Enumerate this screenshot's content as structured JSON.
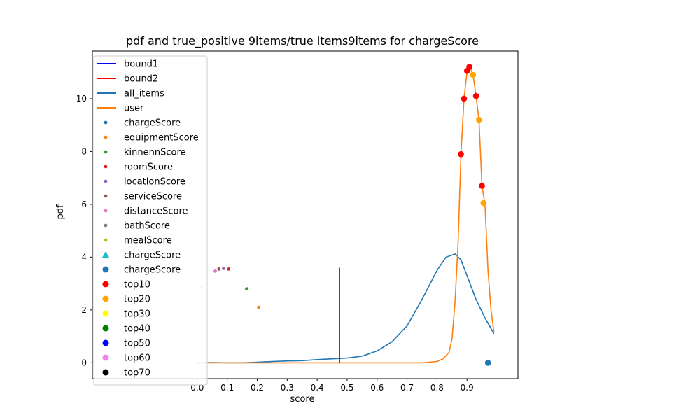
{
  "chart_data": {
    "type": "line",
    "title": "pdf and true_positive 9items/true items9items for chargeScore",
    "xlabel": "score",
    "ylabel": "pdf",
    "xlim": [
      -0.35,
      1.07
    ],
    "ylim": [
      -0.6,
      11.8
    ],
    "xticks": [
      "0.0",
      "0.1",
      "0.2",
      "0.3",
      "0.4",
      "0.5",
      "0.6",
      "0.7",
      "0.8",
      "0.9"
    ],
    "yticks": [
      "0",
      "2",
      "4",
      "6",
      "8",
      "10"
    ],
    "grid": false,
    "legend_position": "upper-left",
    "colors": {
      "bound1": "#0000ff",
      "bound2": "#ff0000",
      "all_items": "#1f77b4",
      "user": "#ff7f0e",
      "top10": "#ff0000",
      "top20": "#ffa500"
    },
    "lines": [
      {
        "name": "all_items",
        "color": "#1f77b4",
        "x": [
          0.0,
          0.05,
          0.1,
          0.15,
          0.2,
          0.25,
          0.3,
          0.35,
          0.4,
          0.45,
          0.5,
          0.55,
          0.6,
          0.65,
          0.7,
          0.75,
          0.8,
          0.83,
          0.86,
          0.88,
          0.9,
          0.93,
          0.96,
          0.99
        ],
        "y": [
          0.0,
          0.01,
          0.0,
          0.0,
          0.02,
          0.05,
          0.07,
          0.08,
          0.12,
          0.15,
          0.18,
          0.25,
          0.45,
          0.8,
          1.4,
          2.4,
          3.5,
          4.0,
          4.12,
          3.9,
          3.3,
          2.4,
          1.7,
          1.1
        ]
      },
      {
        "name": "user",
        "color": "#ff7f0e",
        "x": [
          0.0,
          0.2,
          0.4,
          0.6,
          0.75,
          0.8,
          0.82,
          0.84,
          0.85,
          0.86,
          0.87,
          0.88,
          0.89,
          0.9,
          0.91,
          0.92,
          0.93,
          0.94,
          0.95,
          0.96,
          0.97,
          0.98,
          0.99
        ],
        "y": [
          0.0,
          0.0,
          0.0,
          0.0,
          0.0,
          0.05,
          0.15,
          0.4,
          0.9,
          2.3,
          4.5,
          7.9,
          10.0,
          11.0,
          11.2,
          10.9,
          10.1,
          9.2,
          6.7,
          6.0,
          3.5,
          2.0,
          1.15
        ]
      },
      {
        "name": "bound2",
        "color": "#ff0000",
        "x": [
          0.475,
          0.475
        ],
        "y": [
          0.0,
          3.6
        ]
      }
    ],
    "points": [
      {
        "series": "equipmentScore",
        "color": "#ff7f0e",
        "size": "small",
        "x": 0.205,
        "y": 2.1
      },
      {
        "series": "kinnennScore",
        "color": "#2ca02c",
        "size": "small",
        "x": 0.165,
        "y": 2.8
      },
      {
        "series": "roomScore",
        "color": "#d62728",
        "size": "small",
        "x": 0.105,
        "y": 3.55
      },
      {
        "series": "locationScore",
        "color": "#9467bd",
        "size": "small",
        "x": 0.088,
        "y": 3.57
      },
      {
        "series": "serviceScore",
        "color": "#8c564b",
        "size": "small",
        "x": 0.072,
        "y": 3.55
      },
      {
        "series": "distanceScore",
        "color": "#e377c2",
        "size": "small",
        "x": 0.06,
        "y": 3.47
      },
      {
        "series": "bathScore",
        "color": "#dddddd",
        "size": "small",
        "x": 0.015,
        "y": 2.85
      },
      {
        "series": "mealScore",
        "color": "#eeeed0",
        "size": "small",
        "x": -0.105,
        "y": 0.8
      },
      {
        "series": "chargeScore",
        "color": "#1f77b4",
        "size": "large",
        "x": 0.97,
        "y": 0.0
      },
      {
        "series": "top10",
        "color": "#ff0000",
        "size": "large",
        "x": 0.88,
        "y": 7.9
      },
      {
        "series": "top10",
        "color": "#ff0000",
        "size": "large",
        "x": 0.89,
        "y": 10.0
      },
      {
        "series": "top10",
        "color": "#ff0000",
        "size": "large",
        "x": 0.9,
        "y": 11.05
      },
      {
        "series": "top10",
        "color": "#ff0000",
        "size": "large",
        "x": 0.908,
        "y": 11.2
      },
      {
        "series": "top10",
        "color": "#ff0000",
        "size": "large",
        "x": 0.93,
        "y": 10.1
      },
      {
        "series": "top10",
        "color": "#ff0000",
        "size": "large",
        "x": 0.95,
        "y": 6.7
      },
      {
        "series": "top20",
        "color": "#ffa500",
        "size": "large",
        "x": 0.92,
        "y": 10.9
      },
      {
        "series": "top20",
        "color": "#ffa500",
        "size": "large",
        "x": 0.94,
        "y": 9.2
      },
      {
        "series": "top20",
        "color": "#ffa500",
        "size": "large",
        "x": 0.955,
        "y": 6.05
      }
    ],
    "legend": [
      {
        "label": "bound1",
        "marker": "line",
        "color": "#0000ff"
      },
      {
        "label": "bound2",
        "marker": "line",
        "color": "#ff0000"
      },
      {
        "label": "all_items",
        "marker": "line",
        "color": "#1f77b4"
      },
      {
        "label": "user",
        "marker": "line",
        "color": "#ff7f0e"
      },
      {
        "label": "chargeScore",
        "marker": "dot",
        "color": "#1f77b4"
      },
      {
        "label": "equipmentScore",
        "marker": "dot",
        "color": "#ff7f0e"
      },
      {
        "label": "kinnennScore",
        "marker": "dot",
        "color": "#2ca02c"
      },
      {
        "label": "roomScore",
        "marker": "dot",
        "color": "#d62728"
      },
      {
        "label": "locationScore",
        "marker": "dot",
        "color": "#9467bd"
      },
      {
        "label": "serviceScore",
        "marker": "dot",
        "color": "#8c564b"
      },
      {
        "label": "distanceScore",
        "marker": "dot",
        "color": "#e377c2"
      },
      {
        "label": "bathScore",
        "marker": "dot",
        "color": "#7f7f7f"
      },
      {
        "label": "mealScore",
        "marker": "dot",
        "color": "#bcbd22"
      },
      {
        "label": "chargeScore",
        "marker": "triangle",
        "color": "#17becf"
      },
      {
        "label": "chargeScore",
        "marker": "circle",
        "color": "#1f77b4"
      },
      {
        "label": "top10",
        "marker": "circle",
        "color": "#ff0000"
      },
      {
        "label": "top20",
        "marker": "circle",
        "color": "#ffa500"
      },
      {
        "label": "top30",
        "marker": "circle",
        "color": "#ffff00"
      },
      {
        "label": "top40",
        "marker": "circle",
        "color": "#008000"
      },
      {
        "label": "top50",
        "marker": "circle",
        "color": "#0000ff"
      },
      {
        "label": "top60",
        "marker": "circle",
        "color": "#ee82ee"
      },
      {
        "label": "top70",
        "marker": "circle",
        "color": "#000000"
      }
    ]
  }
}
